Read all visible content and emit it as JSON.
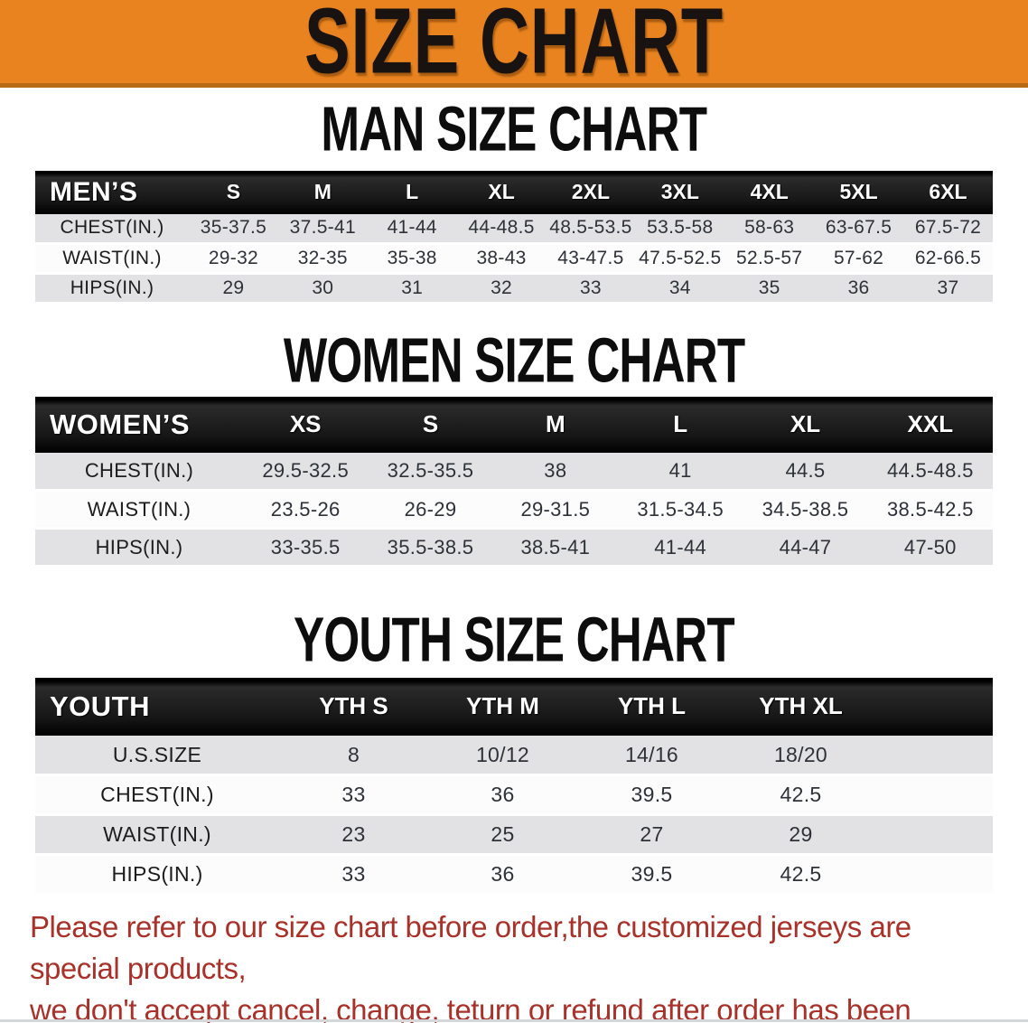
{
  "banner": {
    "title": "SIZE CHART"
  },
  "men": {
    "heading": "MAN SIZE CHART",
    "corner": "MEN’S",
    "columns": [
      "S",
      "M",
      "L",
      "XL",
      "2XL",
      "3XL",
      "4XL",
      "5XL",
      "6XL"
    ],
    "rows": [
      {
        "label": "CHEST(IN.)",
        "values": [
          "35-37.5",
          "37.5-41",
          "41-44",
          "44-48.5",
          "48.5-53.5",
          "53.5-58",
          "58-63",
          "63-67.5",
          "67.5-72"
        ]
      },
      {
        "label": "WAIST(IN.)",
        "values": [
          "29-32",
          "32-35",
          "35-38",
          "38-43",
          "43-47.5",
          "47.5-52.5",
          "52.5-57",
          "57-62",
          "62-66.5"
        ]
      },
      {
        "label": "HIPS(IN.)",
        "values": [
          "29",
          "30",
          "31",
          "32",
          "33",
          "34",
          "35",
          "36",
          "37"
        ]
      }
    ]
  },
  "women": {
    "heading": "WOMEN SIZE CHART",
    "corner": "WOMEN’S",
    "columns": [
      "XS",
      "S",
      "M",
      "L",
      "XL",
      "XXL"
    ],
    "rows": [
      {
        "label": "CHEST(IN.)",
        "values": [
          "29.5-32.5",
          "32.5-35.5",
          "38",
          "41",
          "44.5",
          "44.5-48.5"
        ]
      },
      {
        "label": "WAIST(IN.)",
        "values": [
          "23.5-26",
          "26-29",
          "29-31.5",
          "31.5-34.5",
          "34.5-38.5",
          "38.5-42.5"
        ]
      },
      {
        "label": "HIPS(IN.)",
        "values": [
          "33-35.5",
          "35.5-38.5",
          "38.5-41",
          "41-44",
          "44-47",
          "47-50"
        ]
      }
    ]
  },
  "youth": {
    "heading": "YOUTH SIZE CHART",
    "corner": "YOUTH",
    "columns": [
      "YTH S",
      "YTH M",
      "YTH L",
      "YTH XL"
    ],
    "rows": [
      {
        "label": "U.S.SIZE",
        "values": [
          "8",
          "10/12",
          "14/16",
          "18/20"
        ]
      },
      {
        "label": "CHEST(IN.)",
        "values": [
          "33",
          "36",
          "39.5",
          "42.5"
        ]
      },
      {
        "label": "WAIST(IN.)",
        "values": [
          "23",
          "25",
          "27",
          "29"
        ]
      },
      {
        "label": "HIPS(IN.)",
        "values": [
          "33",
          "36",
          "39.5",
          "42.5"
        ]
      }
    ]
  },
  "footer": {
    "line1": "Please refer to our size chart before order,the customized jerseys are special products,",
    "line2": "we don't accept cancel, change, teturn or refund after order has been placed!"
  },
  "colors": {
    "banner_background": "#E8831F",
    "banner_underline": "#B96A15",
    "table_header_bar": "#151515",
    "row_shaded": "#E2E2E4",
    "row_plain": "#FCFCFC",
    "footer_text": "#A93129"
  }
}
